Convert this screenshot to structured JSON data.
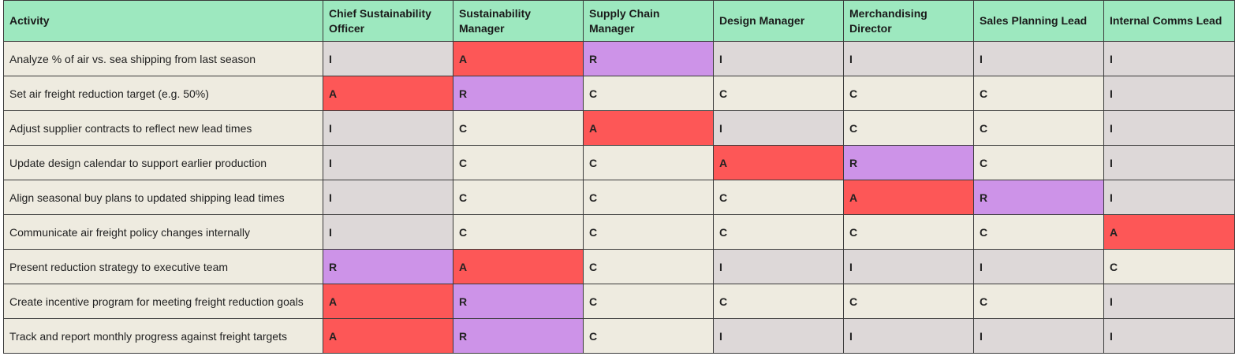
{
  "table": {
    "headers": [
      "Activity",
      "Chief Sustainability Officer",
      "Sustainability Manager",
      "Supply Chain Manager",
      "Design Manager",
      "Merchandising Director",
      "Sales Planning Lead",
      "Internal Comms Lead"
    ],
    "rows": [
      {
        "activity": "Analyze % of air vs. sea shipping from last season",
        "values": [
          "I",
          "A",
          "R",
          "I",
          "I",
          "I",
          "I"
        ]
      },
      {
        "activity": "Set air freight reduction target (e.g. 50%)",
        "values": [
          "A",
          "R",
          "C",
          "C",
          "C",
          "C",
          "I"
        ]
      },
      {
        "activity": "Adjust supplier contracts to reflect new lead times",
        "values": [
          "I",
          "C",
          "A",
          "I",
          "C",
          "C",
          "I"
        ]
      },
      {
        "activity": "Update design calendar to support earlier production",
        "values": [
          "I",
          "C",
          "C",
          "A",
          "R",
          "C",
          "I"
        ]
      },
      {
        "activity": "Align seasonal buy plans to updated shipping lead times",
        "values": [
          "I",
          "C",
          "C",
          "C",
          "A",
          "R",
          "I"
        ]
      },
      {
        "activity": "Communicate air freight policy changes internally",
        "values": [
          "I",
          "C",
          "C",
          "C",
          "C",
          "C",
          "A"
        ]
      },
      {
        "activity": "Present reduction strategy to executive team",
        "values": [
          "R",
          "A",
          "C",
          "I",
          "I",
          "I",
          "C"
        ]
      },
      {
        "activity": "Create incentive program for meeting freight reduction goals",
        "values": [
          "A",
          "R",
          "C",
          "C",
          "C",
          "C",
          "I"
        ]
      },
      {
        "activity": "Track and report monthly progress against freight targets",
        "values": [
          "A",
          "R",
          "C",
          "I",
          "I",
          "I",
          "I"
        ]
      }
    ]
  },
  "colors": {
    "header_bg": "#9de8bf",
    "activity_bg": "#eeebe0",
    "I": "#ddd8d8",
    "C": "#eeebe0",
    "A": "#fd5757",
    "R": "#cd93e8",
    "border": "#3a3a3a"
  }
}
